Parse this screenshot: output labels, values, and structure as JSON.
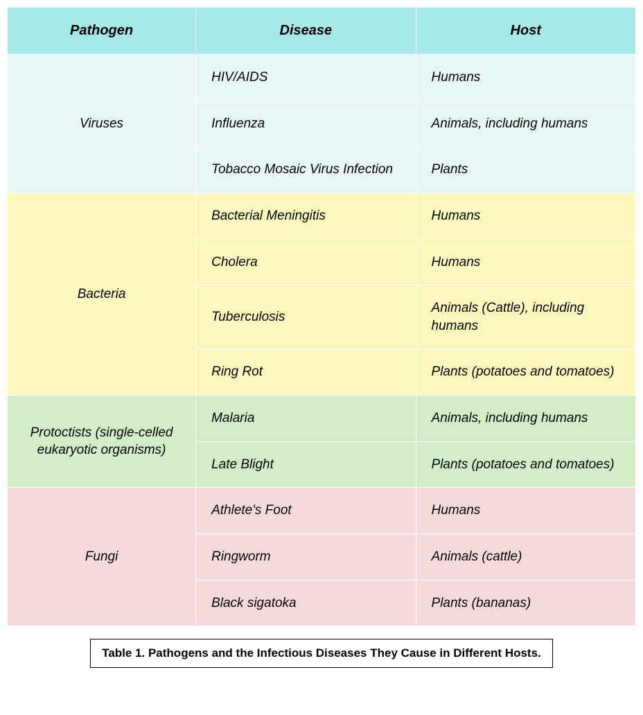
{
  "headers": [
    "Pathogen",
    "Disease",
    "Host"
  ],
  "header_bg": "#a7e8e8",
  "groups": [
    {
      "pathogen": "Viruses",
      "bg": "#e8f7f6",
      "rows": [
        {
          "disease": "HIV/AIDS",
          "host": "Humans"
        },
        {
          "disease": "Influenza",
          "host": "Animals, including humans"
        },
        {
          "disease": "Tobacco Mosaic Virus Infection",
          "host": "Plants"
        }
      ]
    },
    {
      "pathogen": "Bacteria",
      "bg": "#fcf8bd",
      "rows": [
        {
          "disease": "Bacterial Meningitis",
          "host": "Humans"
        },
        {
          "disease": "Cholera",
          "host": "Humans"
        },
        {
          "disease": "Tuberculosis",
          "host": "Animals (Cattle), including humans"
        },
        {
          "disease": "Ring Rot",
          "host": "Plants (potatoes and tomatoes)"
        }
      ]
    },
    {
      "pathogen": "Protoctists (single-celled eukaryotic organisms)",
      "bg": "#d2eec9",
      "rows": [
        {
          "disease": "Malaria",
          "host": "Animals, including humans"
        },
        {
          "disease": "Late Blight",
          "host": "Plants (potatoes and tomatoes)"
        }
      ]
    },
    {
      "pathogen": "Fungi",
      "bg": "#f6dadb",
      "rows": [
        {
          "disease": "Athlete's Foot",
          "host": "Humans"
        },
        {
          "disease": "Ringworm",
          "host": "Animals (cattle)"
        },
        {
          "disease": "Black sigatoka",
          "host": "Plants (bananas)"
        }
      ]
    }
  ],
  "caption": "Table 1. Pathogens and the Infectious Diseases They Cause in Different Hosts.",
  "column_widths": [
    "30%",
    "35%",
    "35%"
  ],
  "text_color": "#000000",
  "border_color": "#ffffff"
}
